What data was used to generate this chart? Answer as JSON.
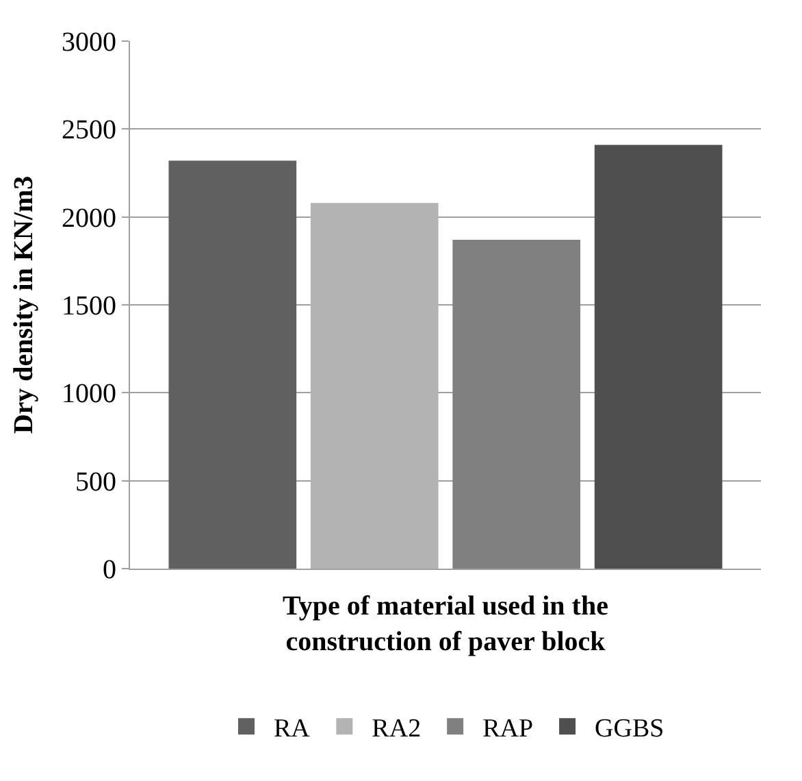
{
  "chart_data": {
    "type": "bar",
    "xlabel": "Type of material used in the construction of paver block",
    "ylabel": "Dry density in KN/m3",
    "categories": [
      null
    ],
    "series": [
      {
        "name": "RA",
        "color": "#606060",
        "values": [
          2320
        ]
      },
      {
        "name": "RA2",
        "color": "#b3b3b3",
        "values": [
          2080
        ]
      },
      {
        "name": "RAP",
        "color": "#808080",
        "values": [
          1870
        ]
      },
      {
        "name": "GGBS",
        "color": "#4f4f4f",
        "values": [
          2410
        ]
      }
    ],
    "ylim": [
      0,
      3000
    ],
    "yticks": [
      0,
      500,
      1000,
      1500,
      2000,
      2500,
      3000
    ],
    "grid": "y",
    "legend": "bottom"
  }
}
